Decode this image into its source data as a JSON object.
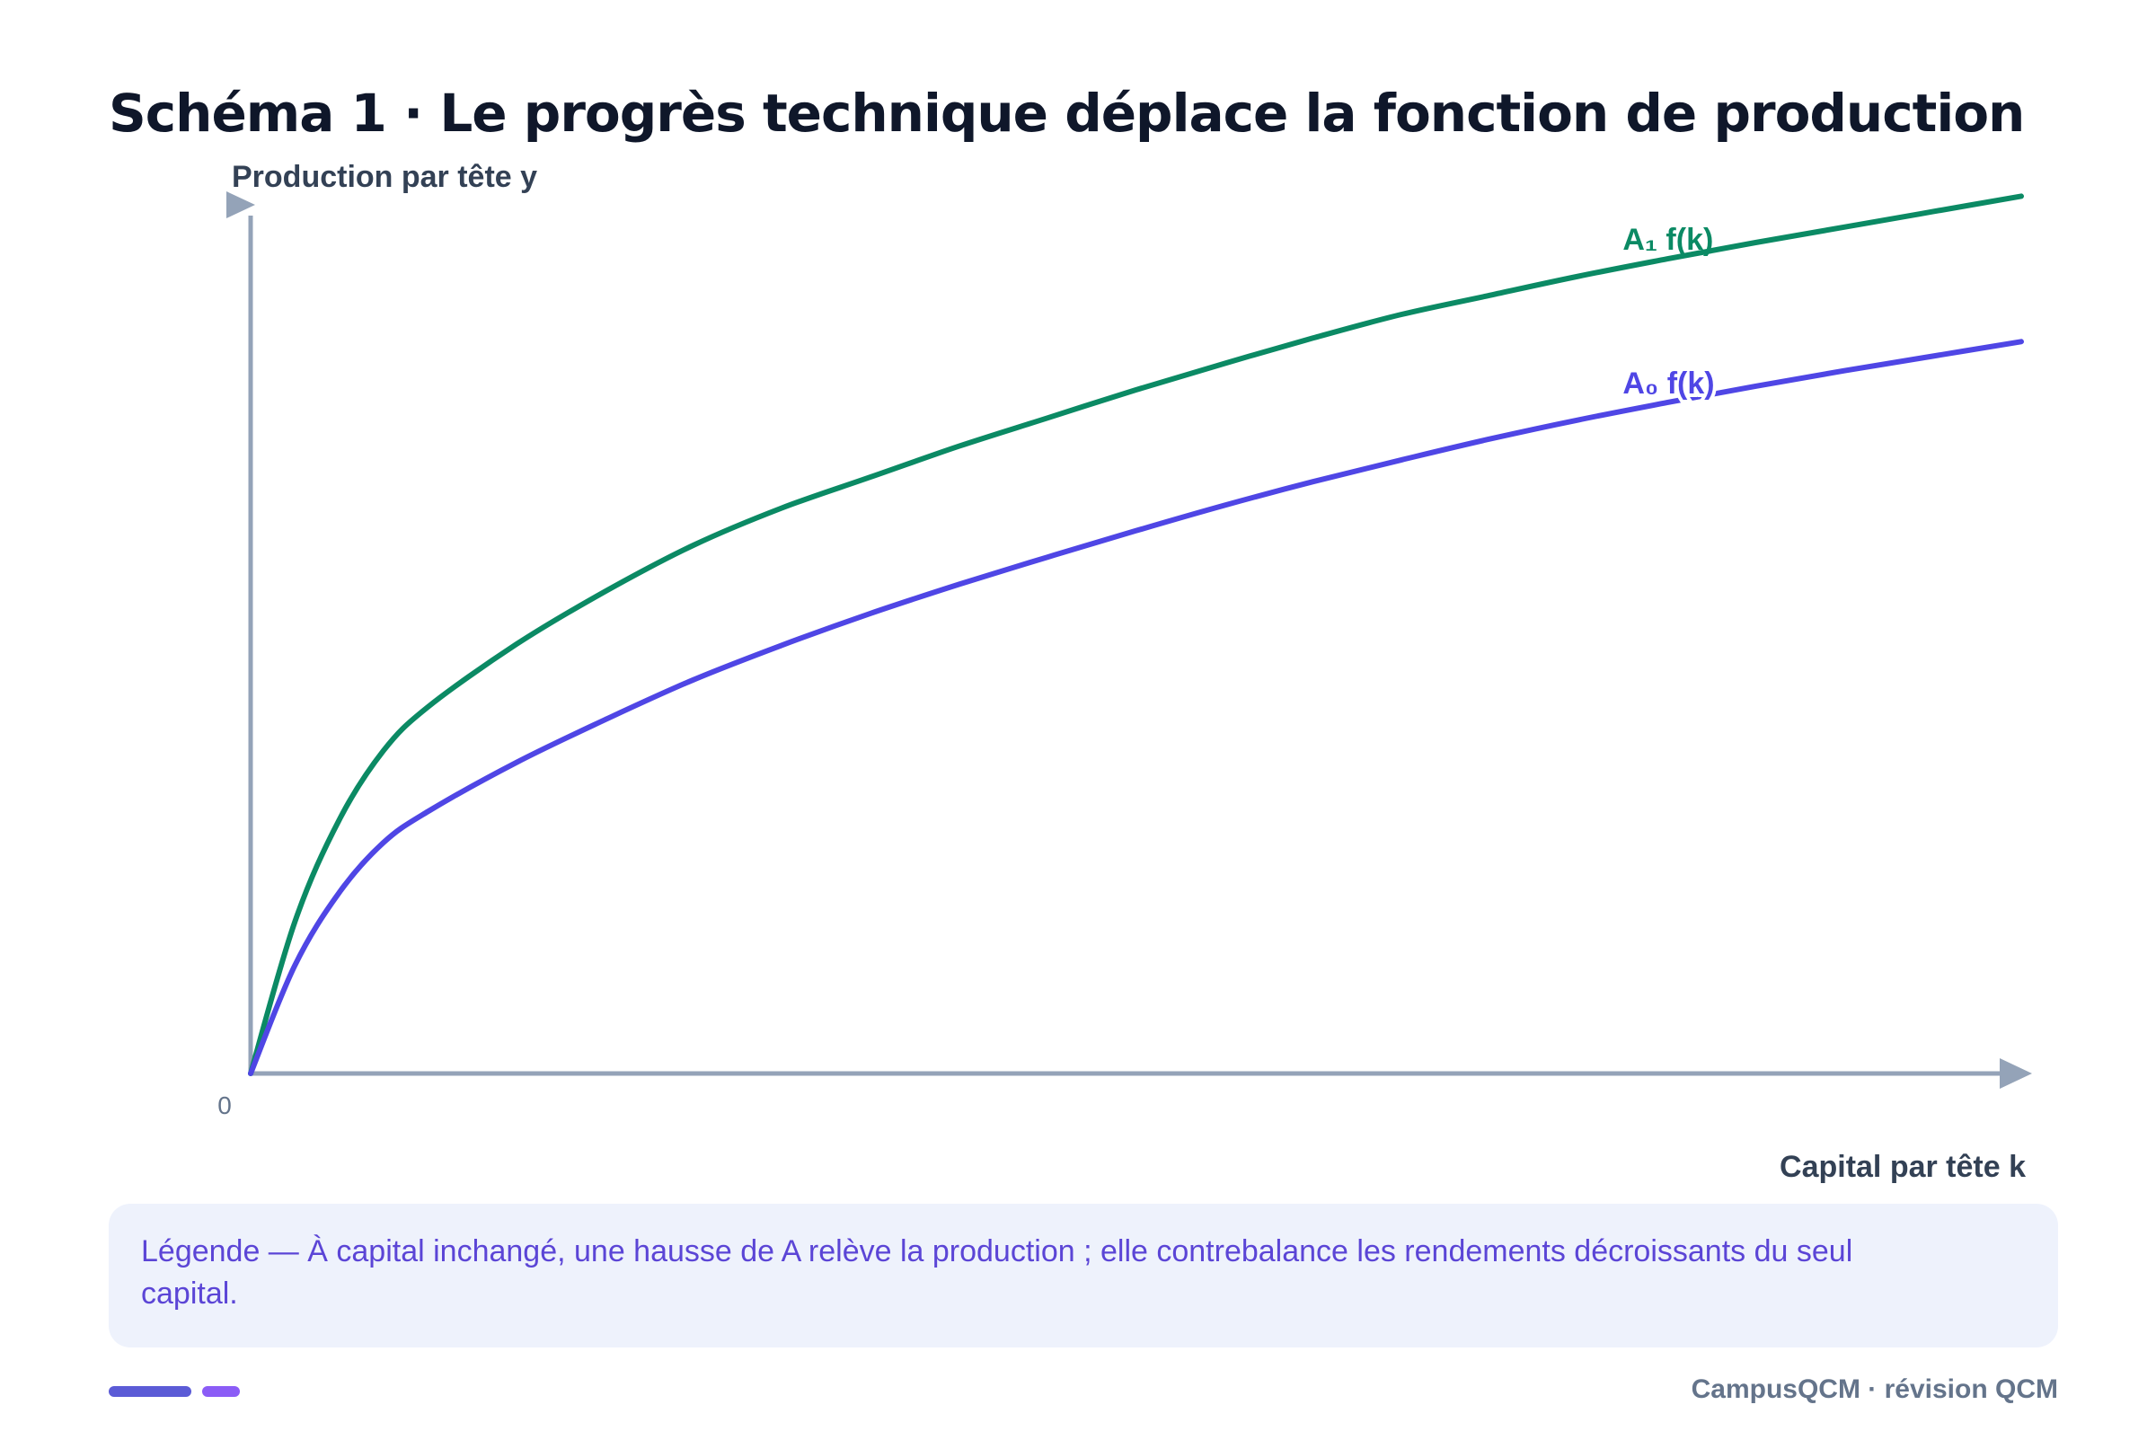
{
  "header": {
    "title": "Schéma 1 · Le progrès technique déplace la fonction de production"
  },
  "chart_data": {
    "type": "line",
    "title": "Schéma 1 · Le progrès technique déplace la fonction de production",
    "xlabel": "Capital par tête k",
    "ylabel": "Production par tête y",
    "x_ticks": [
      "0"
    ],
    "xlim": [
      0,
      100
    ],
    "ylim": [
      0,
      100
    ],
    "grid": false,
    "x": [
      0,
      2.5,
      5,
      7.5,
      10,
      15,
      20,
      25,
      30,
      35,
      40,
      45,
      50,
      55,
      60,
      65,
      70,
      75,
      80,
      85,
      90,
      95,
      100
    ],
    "series": [
      {
        "name": "A₁ f(k)",
        "color": "#0b8a64",
        "values": [
          0,
          16.7,
          27.9,
          35.5,
          40.3,
          47.2,
          53.0,
          58.1,
          62.2,
          65.6,
          69.0,
          72.1,
          75.2,
          78.1,
          80.9,
          83.5,
          85.6,
          87.7,
          89.6,
          91.4,
          93.1,
          94.8,
          96.5
        ]
      },
      {
        "name": "A₀ f(k)",
        "color": "#4f46e5",
        "values": [
          0,
          11.9,
          19.9,
          25.4,
          28.8,
          34.2,
          38.9,
          43.3,
          47.1,
          50.6,
          53.8,
          56.8,
          59.7,
          62.5,
          65.1,
          67.5,
          69.8,
          71.9,
          73.8,
          75.6,
          77.3,
          78.9,
          80.5
        ]
      }
    ]
  },
  "legend": {
    "text": "Légende — À capital inchangé, une hausse de A relève la production ; elle contrebalance les rendements décroissants du seul capital."
  },
  "footer": {
    "brand": "CampusQCM · révision QCM",
    "bar_colors": [
      "#5b5bd6",
      "#8b5cf6"
    ]
  },
  "colors": {
    "axis": "#94a3b8",
    "title": "#0f172a",
    "legend_bg": "#eef2fc",
    "legend_text": "#5b45d6"
  }
}
